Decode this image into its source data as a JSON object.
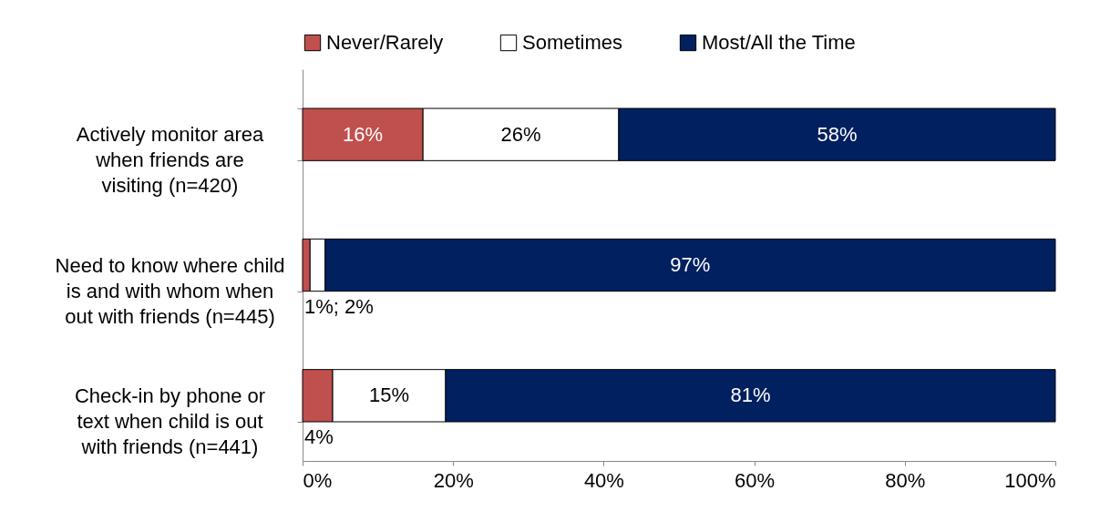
{
  "chart_data": {
    "type": "bar",
    "orientation": "horizontal",
    "stacked": true,
    "categories": [
      "Actively monitor area when friends are visiting (n=420)",
      "Need to know where child is and with whom when out with friends (n=445)",
      "Check-in by phone or text when child is out with friends (n=441)"
    ],
    "series": [
      {
        "name": "Never/Rarely",
        "color": "#c0504d",
        "values": [
          16,
          1,
          4
        ],
        "value_labels": [
          "16%",
          "1%; 2%",
          "4%"
        ]
      },
      {
        "name": "Sometimes",
        "color": "#ffffff",
        "values": [
          26,
          2,
          15
        ],
        "value_labels": [
          "26%",
          null,
          "15%"
        ]
      },
      {
        "name": "Most/All the Time",
        "color": "#002060",
        "values": [
          58,
          97,
          81
        ],
        "value_labels": [
          "58%",
          "97%",
          "81%"
        ]
      }
    ],
    "xlim": [
      0,
      100
    ],
    "xticks": [
      {
        "value": 0,
        "label": "0%"
      },
      {
        "value": 20,
        "label": "20%"
      },
      {
        "value": 40,
        "label": "40%"
      },
      {
        "value": 60,
        "label": "60%"
      },
      {
        "value": 80,
        "label": "80%"
      },
      {
        "value": 100,
        "label": "100%"
      }
    ],
    "grid": false,
    "legend": "top"
  }
}
